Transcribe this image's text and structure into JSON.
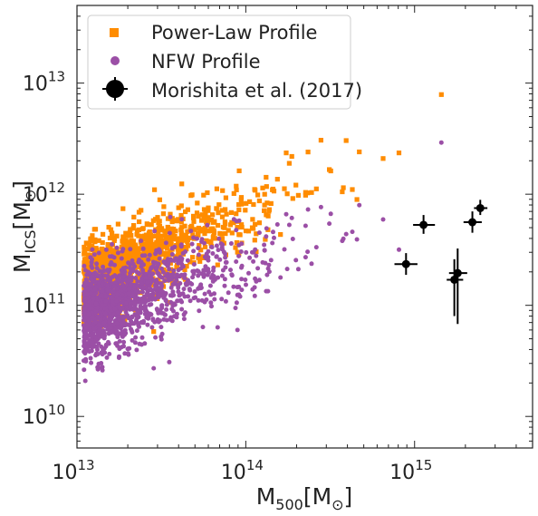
{
  "chart_data": {
    "type": "scatter",
    "title": "",
    "xscale": "log",
    "yscale": "log",
    "xlim": [
      10000000000000.0,
      5000000000000000.0
    ],
    "ylim": [
      5200000000.0,
      50000000000000.0
    ],
    "xlabel": {
      "base": "M",
      "sub": "500",
      "bracket": "[M",
      "sun_sub": "⊙",
      "close": "]"
    },
    "ylabel": {
      "base": "M",
      "sub": "ICS",
      "bracket": "[M",
      "sun_sub": "⊙",
      "close": "]"
    },
    "x_ticks": [
      {
        "base": "10",
        "exp": "13",
        "value": 10000000000000.0
      },
      {
        "base": "10",
        "exp": "14",
        "value": 100000000000000.0
      },
      {
        "base": "10",
        "exp": "15",
        "value": 1000000000000000.0
      }
    ],
    "y_ticks": [
      {
        "base": "10",
        "exp": "10",
        "value": 10000000000.0
      },
      {
        "base": "10",
        "exp": "11",
        "value": 100000000000.0
      },
      {
        "base": "10",
        "exp": "12",
        "value": 1000000000000.0
      },
      {
        "base": "10",
        "exp": "13",
        "value": 10000000000000.0
      }
    ],
    "legend_position": "upper-left",
    "series": [
      {
        "name": "Power-Law Profile",
        "marker": "square",
        "color": "#ff8c00",
        "points_generated": true
      },
      {
        "name": "NFW Profile",
        "marker": "circle",
        "color": "#9b4fa6",
        "points_generated": true
      },
      {
        "name": "Morishita et al. (2017)",
        "marker": "errorbar-circle",
        "color": "#000000",
        "points": [
          {
            "x": 890000000000000.0,
            "y": 235000000000.0,
            "xlo": 760000000000000.0,
            "xhi": 1040000000000000.0,
            "ylo": 188000000000.0,
            "yhi": 295000000000.0
          },
          {
            "x": 1130000000000000.0,
            "y": 530000000000.0,
            "xlo": 980000000000000.0,
            "xhi": 1320000000000000.0,
            "ylo": 440000000000.0,
            "yhi": 650000000000.0
          },
          {
            "x": 1720000000000000.0,
            "y": 170000000000.0,
            "xlo": 1550000000000000.0,
            "xhi": 1940000000000000.0,
            "ylo": 80000000000.0,
            "yhi": 260000000000.0
          },
          {
            "x": 1800000000000000.0,
            "y": 195000000000.0,
            "xlo": 1600000000000000.0,
            "xhi": 2050000000000000.0,
            "ylo": 68000000000.0,
            "yhi": 325000000000.0
          },
          {
            "x": 2200000000000000.0,
            "y": 560000000000.0,
            "xlo": 1950000000000000.0,
            "xhi": 2500000000000000.0,
            "ylo": 450000000000.0,
            "yhi": 700000000000.0
          },
          {
            "x": 2450000000000000.0,
            "y": 750000000000.0,
            "xlo": 2250000000000000.0,
            "xhi": 2700000000000000.0,
            "ylo": 650000000000.0,
            "yhi": 890000000000.0
          }
        ]
      }
    ]
  }
}
